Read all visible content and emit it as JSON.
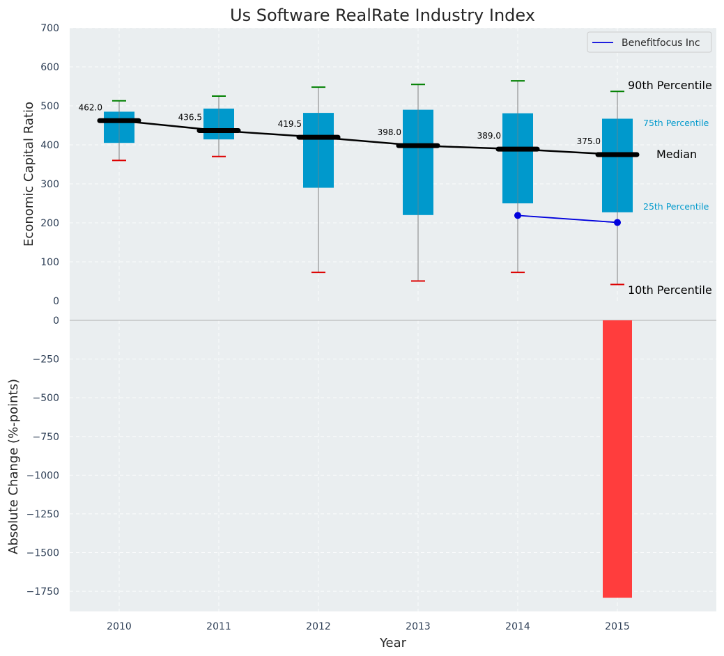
{
  "title": "Us Software RealRate Industry Index",
  "colors": {
    "plot_bg": "#eaeef0",
    "box": "#0099cc",
    "median": "#000000",
    "whisker": "#808080",
    "cap_high": "#008000",
    "cap_low": "#dd0000",
    "company": "#0000dd",
    "change_bar": "#ff3d3d"
  },
  "annotations": {
    "p90": "90th Percentile",
    "p75": "75th Percentile",
    "median": "Median",
    "p25": "25th Percentile",
    "p10": "10th Percentile"
  },
  "chart_data": [
    {
      "type": "box",
      "title": "Us Software RealRate Industry Index",
      "ylabel": "Economic Capital Ratio",
      "xlabel": "",
      "ylim": [
        0,
        700
      ],
      "yticks": [
        0,
        100,
        200,
        300,
        400,
        500,
        600,
        700
      ],
      "categories": [
        "2010",
        "2011",
        "2012",
        "2013",
        "2014",
        "2015"
      ],
      "grid": true,
      "legend": {
        "position": "top-right",
        "entries": [
          "Benefitfocus Inc"
        ]
      },
      "percentiles": {
        "p10": [
          360,
          370,
          73,
          51,
          73,
          42
        ],
        "p25": [
          405,
          414,
          290,
          220,
          250,
          227
        ],
        "median": [
          462.0,
          436.5,
          419.5,
          398.0,
          389.0,
          375.0
        ],
        "p75": [
          485,
          493,
          482,
          490,
          481,
          467
        ],
        "p90": [
          513,
          525,
          548,
          555,
          564,
          537
        ]
      },
      "median_labels": [
        "462.0",
        "436.5",
        "419.5",
        "398.0",
        "389.0",
        "375.0"
      ],
      "series": [
        {
          "name": "Benefitfocus Inc",
          "x": [
            "2014",
            "2015"
          ],
          "values": [
            219,
            201
          ]
        }
      ]
    },
    {
      "type": "bar",
      "ylabel": "Absolute Change (%-points)",
      "xlabel": "Year",
      "ylim": [
        -1880,
        0
      ],
      "yticks": [
        0,
        -250,
        -500,
        -750,
        -1000,
        -1250,
        -1500,
        -1750
      ],
      "ytick_labels": [
        "0",
        "−250",
        "−500",
        "−750",
        "−1000",
        "−1250",
        "−1500",
        "−1750"
      ],
      "categories": [
        "2010",
        "2011",
        "2012",
        "2013",
        "2014",
        "2015"
      ],
      "values": [
        null,
        null,
        null,
        null,
        null,
        -1792
      ],
      "grid": true
    }
  ]
}
